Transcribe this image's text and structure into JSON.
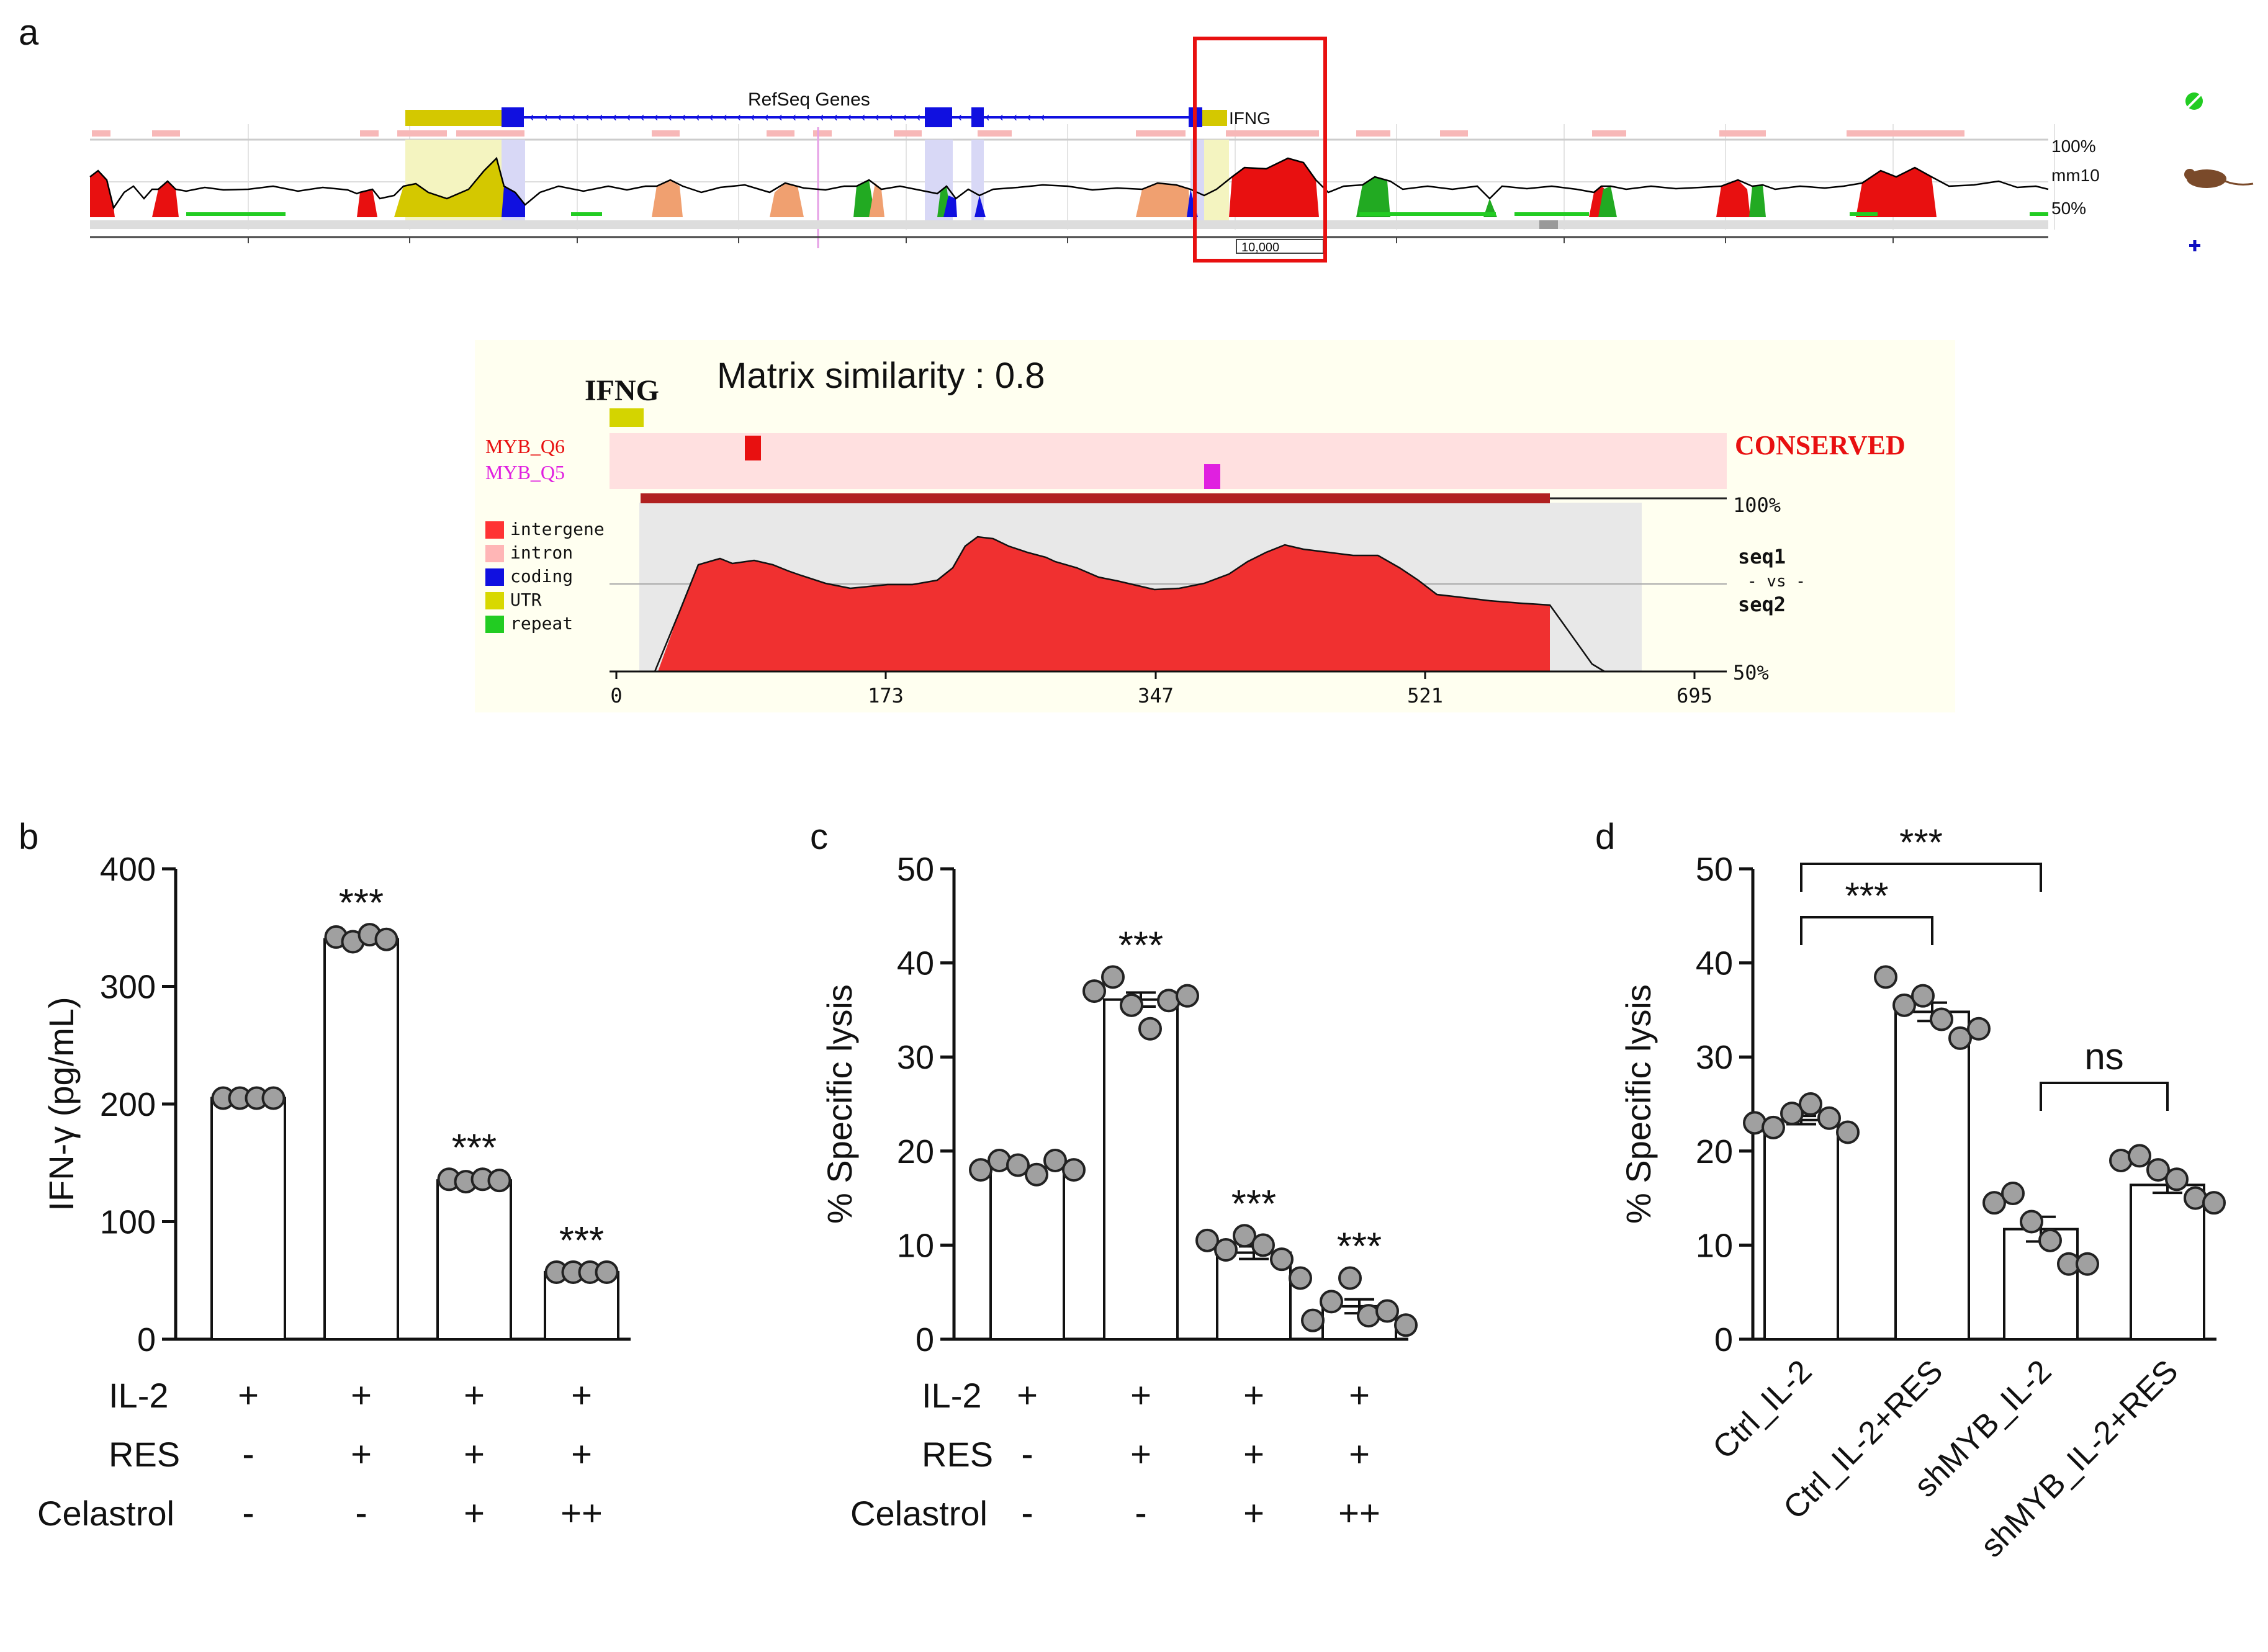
{
  "panel_labels": [
    "a",
    "b",
    "c",
    "d"
  ],
  "browser": {
    "track_title": "RefSeq Genes",
    "gene_label": "IFNG",
    "pct_top": "100%",
    "species": "mm10",
    "pct_bottom": "50%",
    "scale_label": "10,000",
    "icons": [
      "green-leaf-icon",
      "mouse-icon",
      "blue-plus-icon"
    ]
  },
  "zoom": {
    "gene": "IFNG",
    "matrix_label": "Matrix similarity : 0.8",
    "tf1": "MYB_Q6",
    "tf2": "MYB_Q5",
    "conserved": "CONSERVED",
    "pct_top": "100%",
    "pct_bottom": "50%",
    "seq1": "seq1",
    "vs": "- vs -",
    "seq2": "seq2",
    "legend": [
      {
        "label": "intergene",
        "color": "#ff3333"
      },
      {
        "label": "intron",
        "color": "#ffb6b6"
      },
      {
        "label": "coding",
        "color": "#1010e0"
      },
      {
        "label": "UTR",
        "color": "#d8d800"
      },
      {
        "label": "repeat",
        "color": "#22cc22"
      }
    ],
    "xticks": [
      "0",
      "173",
      "347",
      "521",
      "695"
    ]
  },
  "colors": {
    "red": "#e81010",
    "dark_red": "#b02020",
    "pink_bg": "#ffe0e0",
    "cream": "#fffff0",
    "magenta": "#e020e0",
    "grey_dot": "#a0a0a0"
  },
  "chart_data": [
    {
      "panel": "b",
      "type": "bar",
      "ylabel": "IFN-γ (pg/mL)",
      "ylim": [
        0,
        400
      ],
      "yticks": [
        "0",
        "100",
        "200",
        "300",
        "400"
      ],
      "values": [
        205,
        340,
        135,
        57
      ],
      "points": [
        [
          205,
          205,
          205,
          205
        ],
        [
          342,
          338,
          344,
          340
        ],
        [
          136,
          134,
          136,
          135
        ],
        [
          57,
          57,
          57,
          57
        ]
      ],
      "significance": [
        "",
        "***",
        "***",
        "***"
      ],
      "rows": [
        {
          "label": "IL-2",
          "signs": [
            "+",
            "+",
            "+",
            "+"
          ]
        },
        {
          "label": "RES",
          "signs": [
            "-",
            "+",
            "+",
            "+"
          ]
        },
        {
          "label": "Celastrol",
          "signs": [
            "-",
            "-",
            "+",
            "++"
          ]
        }
      ]
    },
    {
      "panel": "c",
      "type": "bar",
      "ylabel": "% Specific lysis",
      "ylim": [
        0,
        50
      ],
      "yticks": [
        "0",
        "10",
        "20",
        "30",
        "40",
        "50"
      ],
      "values": [
        18.3,
        36.1,
        9.2,
        3.5
      ],
      "points": [
        [
          18,
          19,
          18.5,
          17.5,
          19,
          18
        ],
        [
          37,
          38.5,
          35.5,
          33,
          36,
          36.5
        ],
        [
          10.5,
          9.5,
          11,
          10,
          8.5,
          6.5
        ],
        [
          2,
          4,
          6.5,
          2.5,
          3,
          1.5
        ]
      ],
      "significance": [
        "",
        "***",
        "***",
        "***"
      ],
      "rows": [
        {
          "label": "IL-2",
          "signs": [
            "+",
            "+",
            "+",
            "+"
          ]
        },
        {
          "label": "RES",
          "signs": [
            "-",
            "+",
            "+",
            "+"
          ]
        },
        {
          "label": "Celastrol",
          "signs": [
            "-",
            "-",
            "+",
            "++"
          ]
        }
      ]
    },
    {
      "panel": "d",
      "type": "bar",
      "ylabel": "% Specific lysis",
      "ylim": [
        0,
        50
      ],
      "yticks": [
        "0",
        "10",
        "20",
        "30",
        "40",
        "50"
      ],
      "categories": [
        "Ctrl_IL-2",
        "Ctrl_IL-2+RES",
        "shMYB_IL-2",
        "shMYB_IL-2+RES"
      ],
      "values": [
        23.3,
        34.8,
        11.7,
        16.4
      ],
      "points": [
        [
          23,
          22.5,
          24,
          25,
          23.5,
          22
        ],
        [
          38.5,
          35.5,
          36.5,
          34,
          32,
          33
        ],
        [
          14.5,
          15.5,
          12.5,
          10.5,
          8,
          8
        ],
        [
          19,
          19.5,
          18,
          17,
          15,
          14.5
        ]
      ],
      "brackets": [
        {
          "from": 0,
          "to": 1,
          "label": "***"
        },
        {
          "from": 0,
          "to": 2,
          "label": "***"
        },
        {
          "from": 2,
          "to": 3,
          "label": "ns"
        }
      ]
    }
  ]
}
